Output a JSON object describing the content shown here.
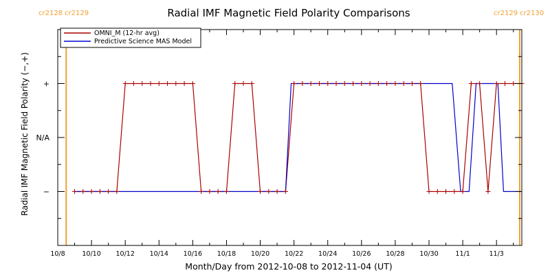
{
  "chart_data": {
    "type": "line",
    "title": "Radial IMF Magnetic Field Polarity Comparisons",
    "xlabel": "Month/Day from 2012-10-08 to 2012-11-04 (UT)",
    "ylabel": "Radial IMF Magnetic Field Polarity (−,+)",
    "xlim": [
      "2012-10-08T00:00",
      "2012-11-04T12:00"
    ],
    "ylim": [
      -2,
      2
    ],
    "x_ticks": [
      {
        "date": "2012-10-08",
        "label": "10/8"
      },
      {
        "date": "2012-10-10",
        "label": "10/10"
      },
      {
        "date": "2012-10-12",
        "label": "10/12"
      },
      {
        "date": "2012-10-14",
        "label": "10/14"
      },
      {
        "date": "2012-10-16",
        "label": "10/16"
      },
      {
        "date": "2012-10-18",
        "label": "10/18"
      },
      {
        "date": "2012-10-20",
        "label": "10/20"
      },
      {
        "date": "2012-10-22",
        "label": "10/22"
      },
      {
        "date": "2012-10-24",
        "label": "10/24"
      },
      {
        "date": "2012-10-26",
        "label": "10/26"
      },
      {
        "date": "2012-10-28",
        "label": "10/28"
      },
      {
        "date": "2012-10-30",
        "label": "10/30"
      },
      {
        "date": "2012-11-01",
        "label": "11/1"
      },
      {
        "date": "2012-11-03",
        "label": "11/3"
      }
    ],
    "y_ticks": [
      {
        "value": 1,
        "label": "+"
      },
      {
        "value": 0,
        "label": "N/A"
      },
      {
        "value": -1,
        "label": "−"
      }
    ],
    "legend_position": "top-left",
    "carrington_markers": [
      {
        "date": "2012-10-08T12:00",
        "left_label": "cr2128",
        "right_label": "cr2129",
        "color": "#f0a030"
      },
      {
        "date": "2012-11-04T09:00",
        "left_label": "cr2129",
        "right_label": "cr2130",
        "color": "#f0a030"
      }
    ],
    "series": [
      {
        "name": "OMNI_M (12-hr avg)",
        "color": "#aa0000",
        "markers": true,
        "points": [
          [
            "2012-10-09T00:00",
            -1
          ],
          [
            "2012-10-09T12:00",
            -1
          ],
          [
            "2012-10-10T00:00",
            -1
          ],
          [
            "2012-10-10T12:00",
            -1
          ],
          [
            "2012-10-11T00:00",
            -1
          ],
          [
            "2012-10-11T12:00",
            -1
          ],
          [
            "2012-10-12T00:00",
            1
          ],
          [
            "2012-10-12T12:00",
            1
          ],
          [
            "2012-10-13T00:00",
            1
          ],
          [
            "2012-10-13T12:00",
            1
          ],
          [
            "2012-10-14T00:00",
            1
          ],
          [
            "2012-10-14T12:00",
            1
          ],
          [
            "2012-10-15T00:00",
            1
          ],
          [
            "2012-10-15T12:00",
            1
          ],
          [
            "2012-10-16T00:00",
            1
          ],
          [
            "2012-10-16T12:00",
            -1
          ],
          [
            "2012-10-17T00:00",
            -1
          ],
          [
            "2012-10-17T12:00",
            -1
          ],
          [
            "2012-10-18T00:00",
            -1
          ],
          [
            "2012-10-18T12:00",
            1
          ],
          [
            "2012-10-19T00:00",
            1
          ],
          [
            "2012-10-19T12:00",
            1
          ],
          [
            "2012-10-20T00:00",
            -1
          ],
          [
            "2012-10-20T12:00",
            -1
          ],
          [
            "2012-10-21T00:00",
            -1
          ],
          [
            "2012-10-21T12:00",
            -1
          ],
          [
            "2012-10-22T00:00",
            1
          ],
          [
            "2012-10-22T12:00",
            1
          ],
          [
            "2012-10-23T00:00",
            1
          ],
          [
            "2012-10-23T12:00",
            1
          ],
          [
            "2012-10-24T00:00",
            1
          ],
          [
            "2012-10-24T12:00",
            1
          ],
          [
            "2012-10-25T00:00",
            1
          ],
          [
            "2012-10-25T12:00",
            1
          ],
          [
            "2012-10-26T00:00",
            1
          ],
          [
            "2012-10-26T12:00",
            1
          ],
          [
            "2012-10-27T00:00",
            1
          ],
          [
            "2012-10-27T12:00",
            1
          ],
          [
            "2012-10-28T00:00",
            1
          ],
          [
            "2012-10-28T12:00",
            1
          ],
          [
            "2012-10-29T00:00",
            1
          ],
          [
            "2012-10-29T12:00",
            1
          ],
          [
            "2012-10-30T00:00",
            -1
          ],
          [
            "2012-10-30T12:00",
            -1
          ],
          [
            "2012-10-31T00:00",
            -1
          ],
          [
            "2012-10-31T12:00",
            -1
          ],
          [
            "2012-11-01T00:00",
            -1
          ],
          [
            "2012-11-01T12:00",
            1
          ],
          [
            "2012-11-02T00:00",
            1
          ],
          [
            "2012-11-02T12:00",
            -1
          ],
          [
            "2012-11-03T00:00",
            1
          ],
          [
            "2012-11-03T12:00",
            1
          ],
          [
            "2012-11-04T00:00",
            1
          ],
          [
            "2012-11-04T12:00",
            1
          ]
        ]
      },
      {
        "name": "Predictive Science MAS Model",
        "color": "#0000cc",
        "markers": false,
        "points": [
          [
            "2012-10-09T00:00",
            -1
          ],
          [
            "2012-10-21T12:00",
            -1
          ],
          [
            "2012-10-21T20:00",
            1
          ],
          [
            "2012-10-31T09:00",
            1
          ],
          [
            "2012-10-31T21:00",
            -1
          ],
          [
            "2012-11-01T09:00",
            -1
          ],
          [
            "2012-11-01T19:00",
            1
          ],
          [
            "2012-11-03T02:00",
            1
          ],
          [
            "2012-11-03T10:00",
            -1
          ],
          [
            "2012-11-04T12:00",
            -1
          ]
        ]
      }
    ]
  }
}
